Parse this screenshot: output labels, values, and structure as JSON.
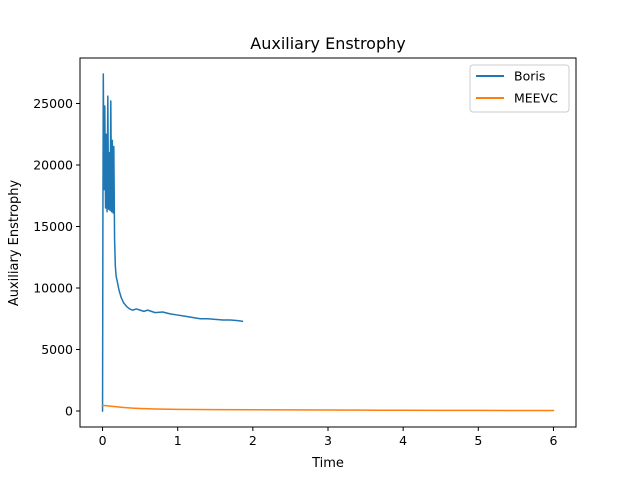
{
  "chart_data": {
    "type": "line",
    "title": "Auxiliary Enstrophy",
    "xlabel": "Time",
    "ylabel": "Auxiliary Enstrophy",
    "xlim": [
      -0.3,
      6.3
    ],
    "ylim": [
      -1300,
      28700
    ],
    "xticks": [
      0,
      1,
      2,
      3,
      4,
      5,
      6
    ],
    "yticks": [
      0,
      5000,
      10000,
      15000,
      20000,
      25000
    ],
    "xtick_labels": [
      "0",
      "1",
      "2",
      "3",
      "4",
      "5",
      "6"
    ],
    "ytick_labels": [
      "0",
      "5000",
      "10000",
      "15000",
      "20000",
      "25000"
    ],
    "grid": false,
    "legend_position": "top-right",
    "series": [
      {
        "name": "Boris",
        "color": "#1f77b4",
        "points": [
          [
            0.0,
            0
          ],
          [
            0.005,
            16000
          ],
          [
            0.01,
            27400
          ],
          [
            0.02,
            18000
          ],
          [
            0.03,
            24800
          ],
          [
            0.04,
            16500
          ],
          [
            0.05,
            22500
          ],
          [
            0.06,
            16200
          ],
          [
            0.07,
            25600
          ],
          [
            0.08,
            16400
          ],
          [
            0.09,
            21000
          ],
          [
            0.1,
            16300
          ],
          [
            0.11,
            25200
          ],
          [
            0.12,
            16200
          ],
          [
            0.13,
            22000
          ],
          [
            0.14,
            16100
          ],
          [
            0.15,
            21500
          ],
          [
            0.16,
            14000
          ],
          [
            0.17,
            11800
          ],
          [
            0.18,
            11000
          ],
          [
            0.2,
            10400
          ],
          [
            0.22,
            9800
          ],
          [
            0.25,
            9200
          ],
          [
            0.28,
            8800
          ],
          [
            0.32,
            8500
          ],
          [
            0.36,
            8300
          ],
          [
            0.4,
            8200
          ],
          [
            0.45,
            8300
          ],
          [
            0.5,
            8200
          ],
          [
            0.55,
            8100
          ],
          [
            0.6,
            8200
          ],
          [
            0.7,
            8000
          ],
          [
            0.8,
            8050
          ],
          [
            0.9,
            7900
          ],
          [
            1.0,
            7800
          ],
          [
            1.1,
            7700
          ],
          [
            1.2,
            7600
          ],
          [
            1.3,
            7500
          ],
          [
            1.4,
            7500
          ],
          [
            1.5,
            7450
          ],
          [
            1.6,
            7400
          ],
          [
            1.7,
            7400
          ],
          [
            1.8,
            7350
          ],
          [
            1.86,
            7300
          ]
        ]
      },
      {
        "name": "MEEVC",
        "color": "#ff7f0e",
        "points": [
          [
            0.0,
            450
          ],
          [
            0.05,
            440
          ],
          [
            0.1,
            400
          ],
          [
            0.2,
            340
          ],
          [
            0.3,
            280
          ],
          [
            0.4,
            230
          ],
          [
            0.5,
            200
          ],
          [
            0.7,
            160
          ],
          [
            1.0,
            130
          ],
          [
            1.5,
            110
          ],
          [
            2.0,
            100
          ],
          [
            2.5,
            90
          ],
          [
            3.0,
            80
          ],
          [
            3.5,
            70
          ],
          [
            4.0,
            60
          ],
          [
            4.5,
            55
          ],
          [
            5.0,
            50
          ],
          [
            5.5,
            45
          ],
          [
            6.0,
            40
          ]
        ]
      }
    ]
  }
}
